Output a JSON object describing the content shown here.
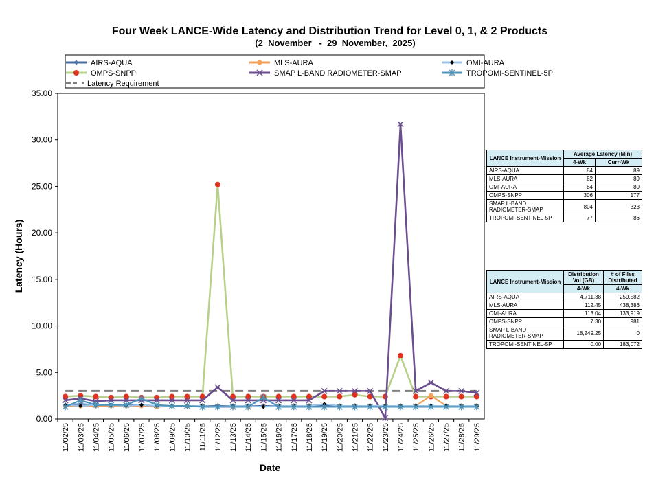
{
  "chart_data": {
    "type": "line",
    "title": "Four Week LANCE-Wide Latency and Distribution Trend for Level 0, 1, & 2 Products",
    "subtitle": "(2  November   -  29  November,  2025)",
    "xlabel": "Date",
    "ylabel": "Latency (Hours)",
    "ylim": [
      0,
      35
    ],
    "yticks": [
      "0.00",
      "5.00",
      "10.00",
      "15.00",
      "20.00",
      "25.00",
      "30.00",
      "35.00"
    ],
    "categories": [
      "11/02/25",
      "11/03/25",
      "11/04/25",
      "11/05/25",
      "11/06/25",
      "11/07/25",
      "11/08/25",
      "11/09/25",
      "11/10/25",
      "11/11/25",
      "11/12/25",
      "11/13/25",
      "11/14/25",
      "11/15/25",
      "11/16/25",
      "11/17/25",
      "11/18/25",
      "11/19/25",
      "11/20/25",
      "11/21/25",
      "11/22/25",
      "11/23/25",
      "11/24/25",
      "11/25/25",
      "11/26/25",
      "11/27/25",
      "11/28/25",
      "11/29/25"
    ],
    "series": [
      {
        "name": "AIRS-AQUA",
        "color": "#4a6fa5",
        "marker": "diamond",
        "values": [
          1.5,
          1.6,
          1.5,
          1.5,
          1.5,
          1.5,
          1.4,
          1.4,
          1.4,
          1.4,
          1.4,
          1.4,
          1.4,
          1.4,
          1.4,
          1.4,
          1.4,
          1.4,
          1.4,
          1.4,
          1.4,
          1.4,
          1.4,
          1.4,
          1.4,
          1.4,
          1.4,
          1.4
        ]
      },
      {
        "name": "MLS-AURA",
        "color": "#f2a05a",
        "marker": "circle",
        "values": [
          1.4,
          1.4,
          1.4,
          1.4,
          1.4,
          1.4,
          1.3,
          1.4,
          1.4,
          1.4,
          1.4,
          1.3,
          1.3,
          1.4,
          1.4,
          1.4,
          1.4,
          1.4,
          1.4,
          1.4,
          1.4,
          1.4,
          1.4,
          1.4,
          2.5,
          1.4,
          1.4,
          1.4
        ]
      },
      {
        "name": "OMI-AURA",
        "color": "#9dc3e6",
        "marker": "diamond-black",
        "values": [
          1.5,
          1.4,
          1.5,
          1.5,
          1.4,
          1.5,
          1.4,
          1.4,
          1.4,
          1.4,
          1.3,
          1.4,
          1.4,
          1.3,
          1.4,
          1.4,
          1.4,
          1.6,
          1.4,
          1.4,
          1.4,
          1.4,
          1.4,
          1.4,
          1.4,
          1.4,
          1.4,
          1.4
        ]
      },
      {
        "name": "OMPS-SNPP",
        "color": "#b8d08a",
        "marker": "circle-red",
        "values": [
          2.4,
          2.5,
          2.4,
          2.3,
          2.4,
          2.3,
          2.3,
          2.4,
          2.4,
          2.4,
          25.2,
          2.4,
          2.4,
          2.4,
          2.4,
          2.4,
          2.4,
          2.4,
          2.4,
          2.6,
          2.4,
          2.4,
          6.8,
          2.4,
          2.4,
          2.4,
          2.4,
          2.4
        ]
      },
      {
        "name": "SMAP L-BAND RADIOMETER-SMAP",
        "color": "#6a4e8e",
        "marker": "x",
        "values": [
          2.0,
          2.2,
          1.9,
          2.0,
          2.0,
          2.0,
          2.0,
          2.0,
          2.0,
          2.0,
          3.4,
          2.0,
          2.0,
          2.0,
          2.0,
          2.0,
          2.0,
          3.0,
          3.0,
          3.0,
          3.0,
          0.1,
          31.7,
          3.0,
          3.9,
          3.0,
          3.0,
          2.8
        ]
      },
      {
        "name": "TROPOMI-SENTINEL-5P",
        "color": "#4f93b9",
        "marker": "asterisk",
        "values": [
          1.3,
          2.0,
          1.5,
          1.5,
          1.5,
          2.2,
          1.5,
          1.4,
          1.4,
          1.3,
          1.3,
          1.3,
          1.3,
          2.3,
          1.3,
          1.3,
          1.3,
          1.3,
          1.3,
          1.3,
          1.3,
          1.3,
          1.3,
          1.3,
          1.3,
          1.3,
          1.3,
          1.3
        ]
      }
    ],
    "requirement": {
      "name": "Latency Requirement",
      "value": 3.0,
      "color": "#808080"
    }
  },
  "latency_table": {
    "header1": "LANCE Instrument-Mission",
    "header2": "Average Latency (Min)",
    "sub1": "4-Wk",
    "sub2": "Curr-Wk",
    "rows": [
      {
        "name": "AIRS-AQUA",
        "wk4": "84",
        "curr": "89"
      },
      {
        "name": "MLS-AURA",
        "wk4": "82",
        "curr": "89"
      },
      {
        "name": "OMI-AURA",
        "wk4": "84",
        "curr": "80"
      },
      {
        "name": "OMPS-SNPP",
        "wk4": "306",
        "curr": "177"
      },
      {
        "name": "SMAP L-BAND RADIOMETER-SMAP",
        "wk4": "804",
        "curr": "323"
      },
      {
        "name": "TROPOMI-SENTINEL-5P",
        "wk4": "77",
        "curr": "86"
      }
    ]
  },
  "distribution_table": {
    "header1": "LANCE Instrument-Mission",
    "header2": "Distribution Vol (GB)",
    "header3": "# of Files Distributed",
    "sub1": "4-Wk",
    "sub2": "4-Wk",
    "rows": [
      {
        "name": "AIRS-AQUA",
        "vol": "4,711.38",
        "files": "259,582"
      },
      {
        "name": "MLS-AURA",
        "vol": "112.45",
        "files": "438,386"
      },
      {
        "name": "OMI-AURA",
        "vol": "113.04",
        "files": "133,919"
      },
      {
        "name": "OMPS-SNPP",
        "vol": "7.30",
        "files": "981"
      },
      {
        "name": "SMAP L-BAND RADIOMETER-SMAP",
        "vol": "18,249.25",
        "files": "0"
      },
      {
        "name": "TROPOMI-SENTINEL-5P",
        "vol": "0.00",
        "files": "183,072"
      }
    ]
  }
}
